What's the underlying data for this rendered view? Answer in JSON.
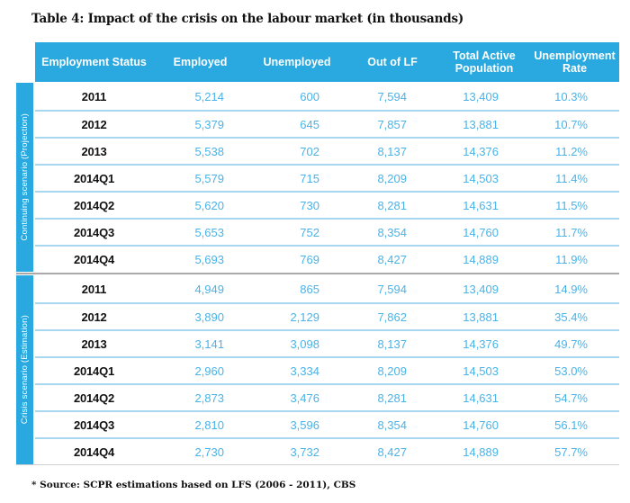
{
  "title": "Table 4: Impact of the crisis on the labour market (in thousands)",
  "footnote": "* Source: SCPR estimations based on LFS (2006 - 2011), CBS",
  "colors": {
    "header_background": "#29a9e0",
    "sidebar_background": "#29a9e0",
    "value_text": "#4ab3e8",
    "row_divider": "#a8d8f1",
    "group_divider": "#a9a9a9",
    "title_text": "#111111"
  },
  "chart_data": {
    "type": "table",
    "columns": [
      "Employment Status",
      "Employed",
      "Unemployed",
      "Out of LF",
      "Total Active Population",
      "Unemployment Rate"
    ],
    "row_groups": [
      {
        "label": "Continuing scenario (Projection)",
        "rows": [
          [
            "2011",
            "5,214",
            "600",
            "7,594",
            "13,409",
            "10.3%"
          ],
          [
            "2012",
            "5,379",
            "645",
            "7,857",
            "13,881",
            "10.7%"
          ],
          [
            "2013",
            "5,538",
            "702",
            "8,137",
            "14,376",
            "11.2%"
          ],
          [
            "2014Q1",
            "5,579",
            "715",
            "8,209",
            "14,503",
            "11.4%"
          ],
          [
            "2014Q2",
            "5,620",
            "730",
            "8,281",
            "14,631",
            "11.5%"
          ],
          [
            "2014Q3",
            "5,653",
            "752",
            "8,354",
            "14,760",
            "11.7%"
          ],
          [
            "2014Q4",
            "5,693",
            "769",
            "8,427",
            "14,889",
            "11.9%"
          ]
        ]
      },
      {
        "label": "Crisis scenario (Estimation)",
        "rows": [
          [
            "2011",
            "4,949",
            "865",
            "7,594",
            "13,409",
            "14.9%"
          ],
          [
            "2012",
            "3,890",
            "2,129",
            "7,862",
            "13,881",
            "35.4%"
          ],
          [
            "2013",
            "3,141",
            "3,098",
            "8,137",
            "14,376",
            "49.7%"
          ],
          [
            "2014Q1",
            "2,960",
            "3,334",
            "8,209",
            "14,503",
            "53.0%"
          ],
          [
            "2014Q2",
            "2,873",
            "3,476",
            "8,281",
            "14,631",
            "54.7%"
          ],
          [
            "2014Q3",
            "2,810",
            "3,596",
            "8,354",
            "14,760",
            "56.1%"
          ],
          [
            "2014Q4",
            "2,730",
            "3,732",
            "8,427",
            "14,889",
            "57.7%"
          ]
        ]
      }
    ]
  }
}
